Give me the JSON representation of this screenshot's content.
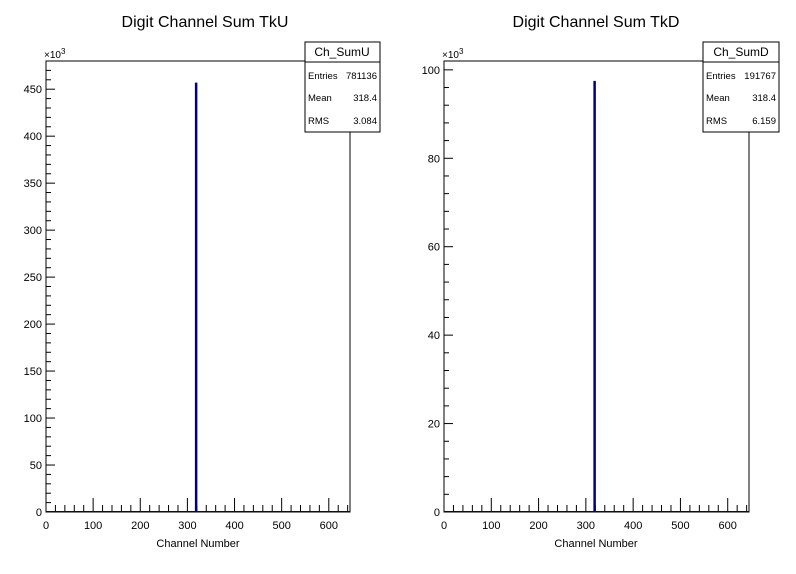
{
  "chart_data": [
    {
      "type": "bar",
      "title": "Digit Channel Sum TkU",
      "xlabel": "Channel Number",
      "ylabel": "",
      "xlim": [
        0,
        645
      ],
      "ylim": [
        0,
        480
      ],
      "y_multiplier": "×10",
      "y_multiplier_exp": "3",
      "x_ticks": [
        "0",
        "100",
        "200",
        "300",
        "400",
        "500",
        "600"
      ],
      "y_ticks": [
        "0",
        "50",
        "100",
        "150",
        "200",
        "250",
        "300",
        "350",
        "400",
        "450"
      ],
      "series": [
        {
          "x": [
            318
          ],
          "values": [
            457
          ]
        }
      ],
      "stats": {
        "name": "Ch_SumU",
        "rows": [
          {
            "label": "Entries",
            "value": "781136"
          },
          {
            "label": "Mean",
            "value": "318.4"
          },
          {
            "label": "RMS",
            "value": "3.084"
          }
        ]
      },
      "colors": {
        "bar": "#000080"
      }
    },
    {
      "type": "bar",
      "title": "Digit Channel Sum TkD",
      "xlabel": "Channel Number",
      "ylabel": "",
      "xlim": [
        0,
        645
      ],
      "ylim": [
        0,
        102
      ],
      "y_multiplier": "×10",
      "y_multiplier_exp": "3",
      "x_ticks": [
        "0",
        "100",
        "200",
        "300",
        "400",
        "500",
        "600"
      ],
      "y_ticks": [
        "0",
        "20",
        "40",
        "60",
        "80",
        "100"
      ],
      "series": [
        {
          "x": [
            318
          ],
          "values": [
            97.5
          ]
        }
      ],
      "stats": {
        "name": "Ch_SumD",
        "rows": [
          {
            "label": "Entries",
            "value": "191767"
          },
          {
            "label": "Mean",
            "value": "318.4"
          },
          {
            "label": "RMS",
            "value": "6.159"
          }
        ]
      },
      "colors": {
        "bar": "#000080"
      }
    }
  ]
}
